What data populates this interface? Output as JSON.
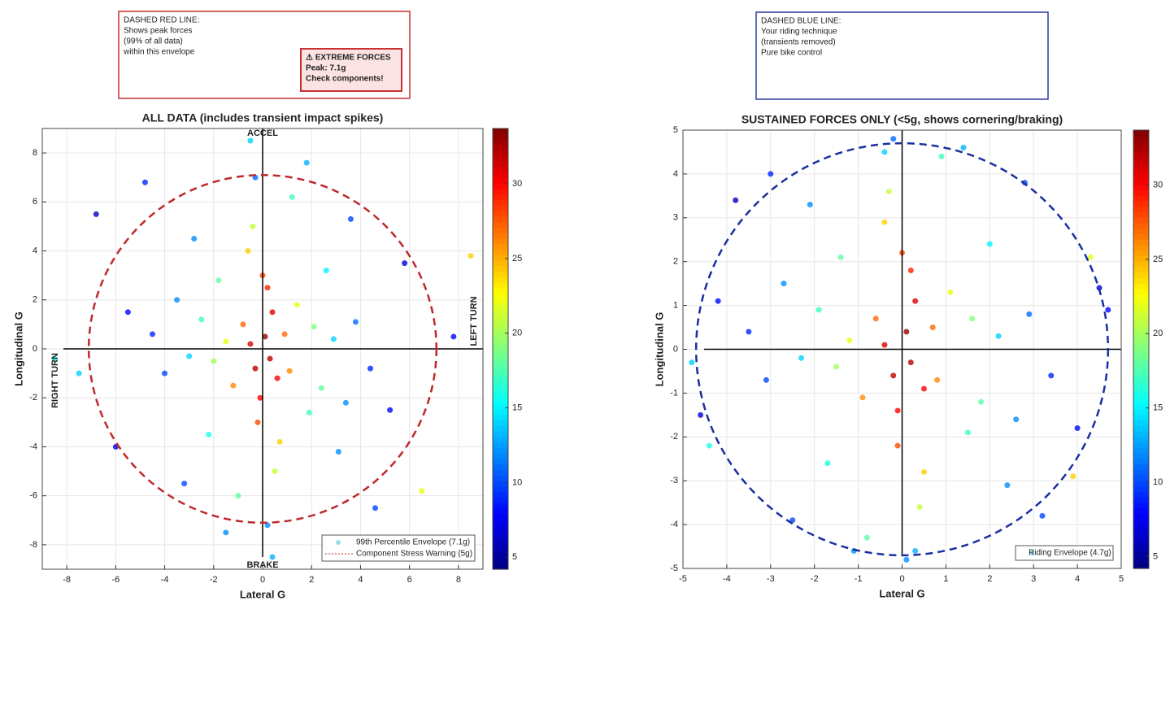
{
  "chart_data": [
    {
      "type": "scatter",
      "title": "ALL DATA (includes transient impact spikes)",
      "xlabel": "Lateral G",
      "ylabel": "Longitudinal G",
      "xlim": [
        -9,
        9
      ],
      "ylim": [
        -9,
        9
      ],
      "xticks": [
        -8,
        -6,
        -4,
        -2,
        0,
        2,
        4,
        6,
        8
      ],
      "yticks": [
        -8,
        -6,
        -4,
        -2,
        0,
        2,
        4,
        6,
        8
      ],
      "clim": [
        4.2,
        33.7
      ],
      "cticks": [
        5,
        10,
        15,
        20,
        25,
        30
      ],
      "colormap": "jet",
      "grid": true,
      "x": [
        0.1,
        -0.3,
        0.4,
        -0.1,
        0.2,
        -0.5,
        0.6,
        0.0,
        -0.2,
        0.3,
        -0.8,
        0.9,
        -1.2,
        1.1,
        -0.6,
        0.7,
        -1.5,
        1.4,
        -0.4,
        0.5,
        -2.0,
        2.1,
        -2.5,
        2.4,
        -1.8,
        1.9,
        -3.0,
        2.9,
        -2.2,
        2.6,
        -3.5,
        3.4,
        -4.0,
        3.8,
        -1.0,
        1.2,
        -2.8,
        3.1,
        -4.5,
        4.4,
        -5.5,
        5.2,
        -6.0,
        5.8,
        -3.2,
        3.6,
        -7.5,
        7.8,
        -1.5,
        1.8,
        -0.5,
        0.4,
        -6.8,
        8.5,
        -8.5,
        6.5,
        -4.8,
        4.6,
        0.2,
        -0.3
      ],
      "y": [
        0.5,
        -0.8,
        1.5,
        -2.0,
        2.5,
        0.2,
        -1.2,
        3.0,
        -3.0,
        -0.4,
        1.0,
        0.6,
        -1.5,
        -0.9,
        4.0,
        -3.8,
        0.3,
        1.8,
        5.0,
        -5.0,
        -0.5,
        0.9,
        1.2,
        -1.6,
        2.8,
        -2.6,
        -0.3,
        0.4,
        -3.5,
        3.2,
        2.0,
        -2.2,
        -1.0,
        1.1,
        -6.0,
        6.2,
        4.5,
        -4.2,
        0.6,
        -0.8,
        1.5,
        -2.5,
        -4.0,
        3.5,
        -5.5,
        5.3,
        -1.0,
        0.5,
        -7.5,
        7.6,
        8.5,
        -8.5,
        5.5,
        3.8,
        -0.4,
        -5.8,
        6.8,
        -6.5,
        -7.2,
        7.0
      ],
      "c": [
        33,
        32,
        31,
        30,
        29,
        31,
        30,
        28,
        28,
        32,
        27,
        27,
        26,
        26,
        24,
        24,
        22,
        22,
        21,
        21,
        20,
        19,
        17,
        18,
        18,
        17,
        14,
        14,
        16,
        15,
        12,
        12,
        10,
        11,
        18,
        17,
        12,
        12,
        9,
        9,
        8,
        8,
        7,
        7,
        10,
        10,
        14,
        8,
        12,
        13,
        14,
        13,
        6,
        24,
        16,
        22,
        9,
        10,
        12,
        11
      ],
      "envelope_radius": 7.1,
      "envelope_color": "#c0282d",
      "quadrant_labels": {
        "top": "ACCEL",
        "bottom": "BRAKE",
        "right": "LEFT TURN",
        "left": "RIGHT TURN"
      },
      "legend_position": "lower right",
      "legend_entries": [
        {
          "label": "99th Percentile Envelope (7.1g)",
          "marker": "dot"
        },
        {
          "label": "Component Stress Warning (5g)",
          "marker": "line"
        }
      ],
      "annotation": {
        "color": "#c83232",
        "lines": [
          "DASHED RED LINE:",
          "Shows peak forces",
          "(99% of all data)",
          "within this envelope"
        ]
      },
      "alert": {
        "lines": [
          "⚠ EXTREME FORCES",
          "Peak: 7.1g",
          "Check components!"
        ]
      }
    },
    {
      "type": "scatter",
      "title": "SUSTAINED FORCES ONLY (<5g, shows cornering/braking)",
      "xlabel": "Lateral G",
      "ylabel": "Longitudinal G",
      "xlim": [
        -5,
        5
      ],
      "ylim": [
        -5,
        5
      ],
      "xticks": [
        -5,
        -4,
        -3,
        -2,
        -1,
        0,
        1,
        2,
        3,
        4,
        5
      ],
      "yticks": [
        -5,
        -4,
        -3,
        -2,
        -1,
        0,
        1,
        2,
        3,
        4,
        5
      ],
      "clim": [
        4.2,
        33.7
      ],
      "cticks": [
        5,
        10,
        15,
        20,
        25,
        30
      ],
      "colormap": "jet",
      "grid": true,
      "x": [
        0.1,
        -0.2,
        0.3,
        -0.1,
        0.2,
        -0.4,
        0.5,
        0.0,
        -0.1,
        0.2,
        -0.6,
        0.7,
        -0.9,
        0.8,
        -0.4,
        0.5,
        -1.2,
        1.1,
        -0.3,
        0.4,
        -1.5,
        1.6,
        -1.9,
        1.8,
        -1.4,
        1.5,
        -2.3,
        2.2,
        -1.7,
        2.0,
        -2.7,
        2.6,
        -3.1,
        2.9,
        -0.8,
        0.9,
        -2.1,
        2.4,
        -3.5,
        3.4,
        -4.2,
        4.0,
        -4.6,
        4.5,
        -2.5,
        2.8,
        -4.8,
        4.7,
        -1.1,
        1.4,
        -0.4,
        0.3,
        -3.8,
        3.9,
        -4.4,
        4.3,
        -3.0,
        3.2,
        0.1,
        -0.2
      ],
      "y": [
        0.4,
        -0.6,
        1.1,
        -1.4,
        1.8,
        0.1,
        -0.9,
        2.2,
        -2.2,
        -0.3,
        0.7,
        0.5,
        -1.1,
        -0.7,
        2.9,
        -2.8,
        0.2,
        1.3,
        3.6,
        -3.6,
        -0.4,
        0.7,
        0.9,
        -1.2,
        2.1,
        -1.9,
        -0.2,
        0.3,
        -2.6,
        2.4,
        1.5,
        -1.6,
        -0.7,
        0.8,
        -4.3,
        4.4,
        3.3,
        -3.1,
        0.4,
        -0.6,
        1.1,
        -1.8,
        -1.5,
        1.4,
        -3.9,
        3.8,
        -0.3,
        0.9,
        -4.6,
        4.6,
        4.5,
        -4.6,
        3.4,
        -2.9,
        -2.2,
        2.1,
        4.0,
        -3.8,
        -4.8,
        4.8
      ],
      "c": [
        33,
        32,
        31,
        30,
        29,
        31,
        30,
        28,
        28,
        32,
        27,
        27,
        26,
        26,
        24,
        24,
        22,
        22,
        21,
        21,
        20,
        19,
        17,
        18,
        18,
        17,
        14,
        14,
        16,
        15,
        12,
        12,
        10,
        11,
        18,
        17,
        12,
        12,
        9,
        9,
        8,
        8,
        7,
        7,
        10,
        10,
        14,
        8,
        12,
        13,
        14,
        13,
        6,
        24,
        16,
        22,
        9,
        10,
        12,
        11
      ],
      "envelope_radius": 4.7,
      "envelope_color": "#1a2fa0",
      "legend_position": "lower right",
      "legend_entries": [
        {
          "label": "Riding Envelope (4.7g)",
          "marker": "dot"
        }
      ],
      "annotation": {
        "color": "#2c3a9a",
        "lines": [
          "DASHED BLUE LINE:",
          "Your riding technique",
          "(transients removed)",
          "Pure bike control"
        ]
      }
    }
  ]
}
